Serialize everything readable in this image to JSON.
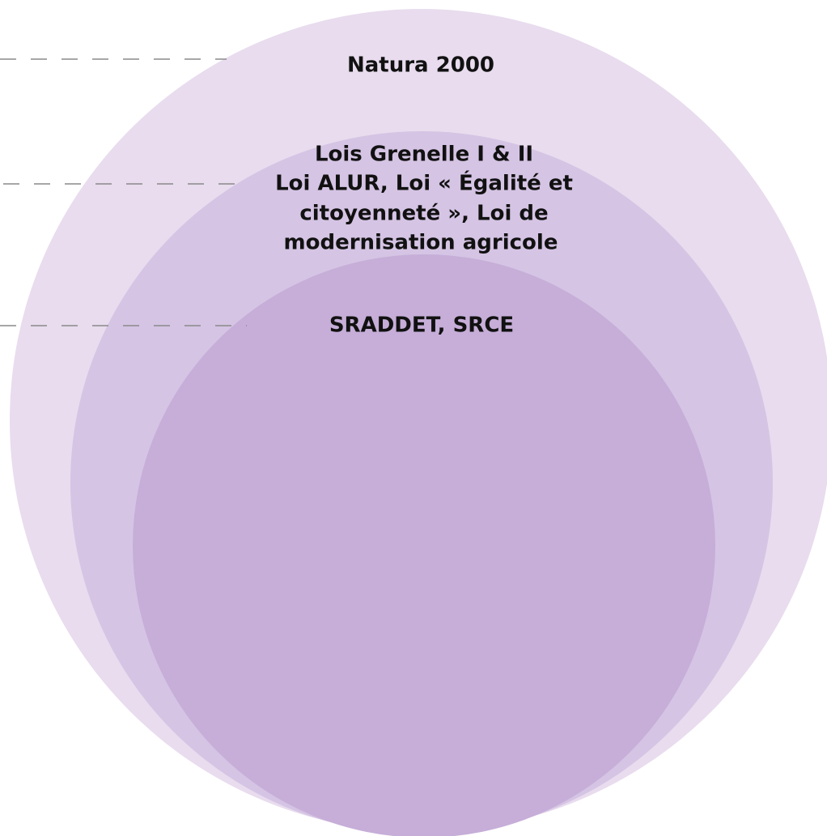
{
  "circles": [
    {
      "label": [
        "Natura 2000"
      ]
    },
    {
      "label": [
        "Lois Grenelle I & II",
        "Loi ALUR, Loi « Égalité et",
        "citoyenneté », Loi de",
        "modernisation agricole"
      ]
    },
    {
      "label": [
        "SRADDET, SRCE"
      ]
    }
  ]
}
